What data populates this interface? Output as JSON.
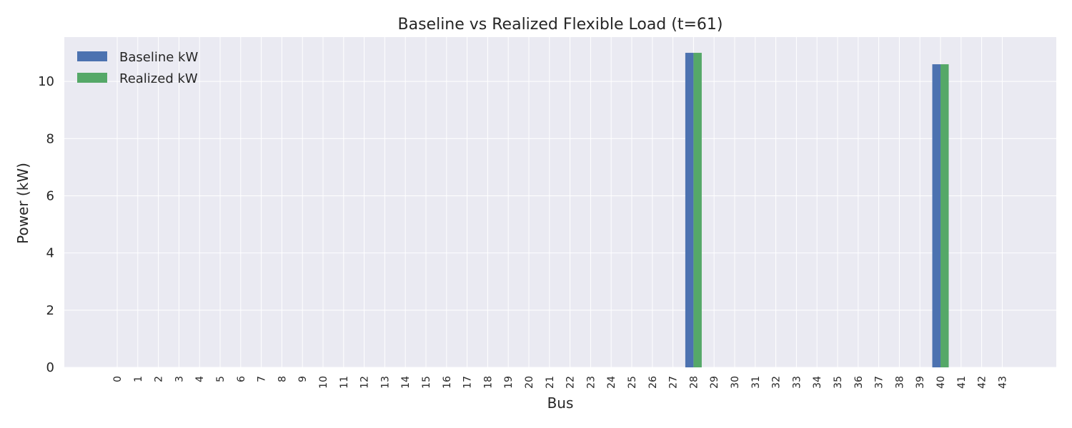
{
  "chart_data": {
    "type": "bar",
    "title": "Baseline vs Realized Flexible Load (t=61)",
    "xlabel": "Bus",
    "ylabel": "Power (kW)",
    "categories": [
      "0",
      "1",
      "2",
      "3",
      "4",
      "5",
      "6",
      "7",
      "8",
      "9",
      "10",
      "11",
      "12",
      "13",
      "14",
      "15",
      "16",
      "17",
      "18",
      "19",
      "20",
      "21",
      "22",
      "23",
      "24",
      "25",
      "26",
      "27",
      "28",
      "29",
      "30",
      "31",
      "32",
      "33",
      "34",
      "35",
      "36",
      "37",
      "38",
      "39",
      "40",
      "41",
      "42",
      "43"
    ],
    "series": [
      {
        "name": "Baseline kW",
        "color": "#4C72B0",
        "values": [
          0,
          0,
          0,
          0,
          0,
          0,
          0,
          0,
          0,
          0,
          0,
          0,
          0,
          0,
          0,
          0,
          0,
          0,
          0,
          0,
          0,
          0,
          0,
          0,
          0,
          0,
          0,
          0,
          11.0,
          0,
          0,
          0,
          0,
          0,
          0,
          0,
          0,
          0,
          0,
          0,
          10.6,
          0,
          0,
          0
        ]
      },
      {
        "name": "Realized kW",
        "color": "#55A868",
        "values": [
          0,
          0,
          0,
          0,
          0,
          0,
          0,
          0,
          0,
          0,
          0,
          0,
          0,
          0,
          0,
          0,
          0,
          0,
          0,
          0,
          0,
          0,
          0,
          0,
          0,
          0,
          0,
          0,
          11.0,
          0,
          0,
          0,
          0,
          0,
          0,
          0,
          0,
          0,
          0,
          0,
          10.6,
          0,
          0,
          0
        ]
      }
    ],
    "ylim": [
      0,
      11.55
    ],
    "yticks": [
      0,
      2,
      4,
      6,
      8,
      10
    ],
    "grid": true,
    "legend_position": "top-left",
    "background_color": "#EAEAF2",
    "grid_color": "#FFFFFF"
  }
}
